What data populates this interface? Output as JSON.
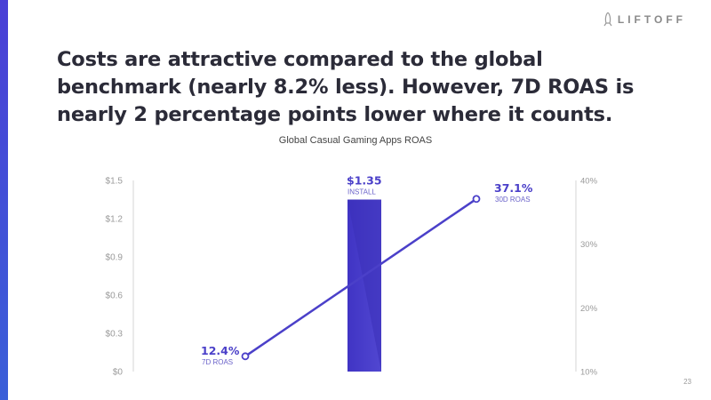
{
  "slide": {
    "logo_text": "LIFTOFF",
    "headline": "Costs are attractive compared to the global benchmark (nearly 8.2% less). However, 7D ROAS is nearly 2 percentage points lower where it counts.",
    "page_number": "23"
  },
  "colors": {
    "accent": "#4b40c9",
    "stripe": "#4a3fd6",
    "text": "#2b2b38"
  },
  "chart_data": {
    "type": "bar",
    "title": "Global Casual Gaming Apps ROAS",
    "left_axis": {
      "ticks": [
        "$0",
        "$0.3",
        "$0.6",
        "$0.9",
        "$1.2",
        "$1.5"
      ],
      "range": [
        0,
        1.5
      ]
    },
    "right_axis": {
      "ticks": [
        "10%",
        "20%",
        "30%",
        "40%"
      ],
      "range": [
        10,
        40
      ]
    },
    "bar": {
      "value": 1.35,
      "label": "$1.35",
      "sublabel": "INSTALL",
      "axis": "left"
    },
    "line": {
      "axis": "right",
      "points": [
        {
          "value": 12.4,
          "label": "12.4%",
          "sublabel": "7D ROAS"
        },
        {
          "value": 37.1,
          "label": "37.1%",
          "sublabel": "30D ROAS"
        }
      ]
    },
    "grid": false
  }
}
